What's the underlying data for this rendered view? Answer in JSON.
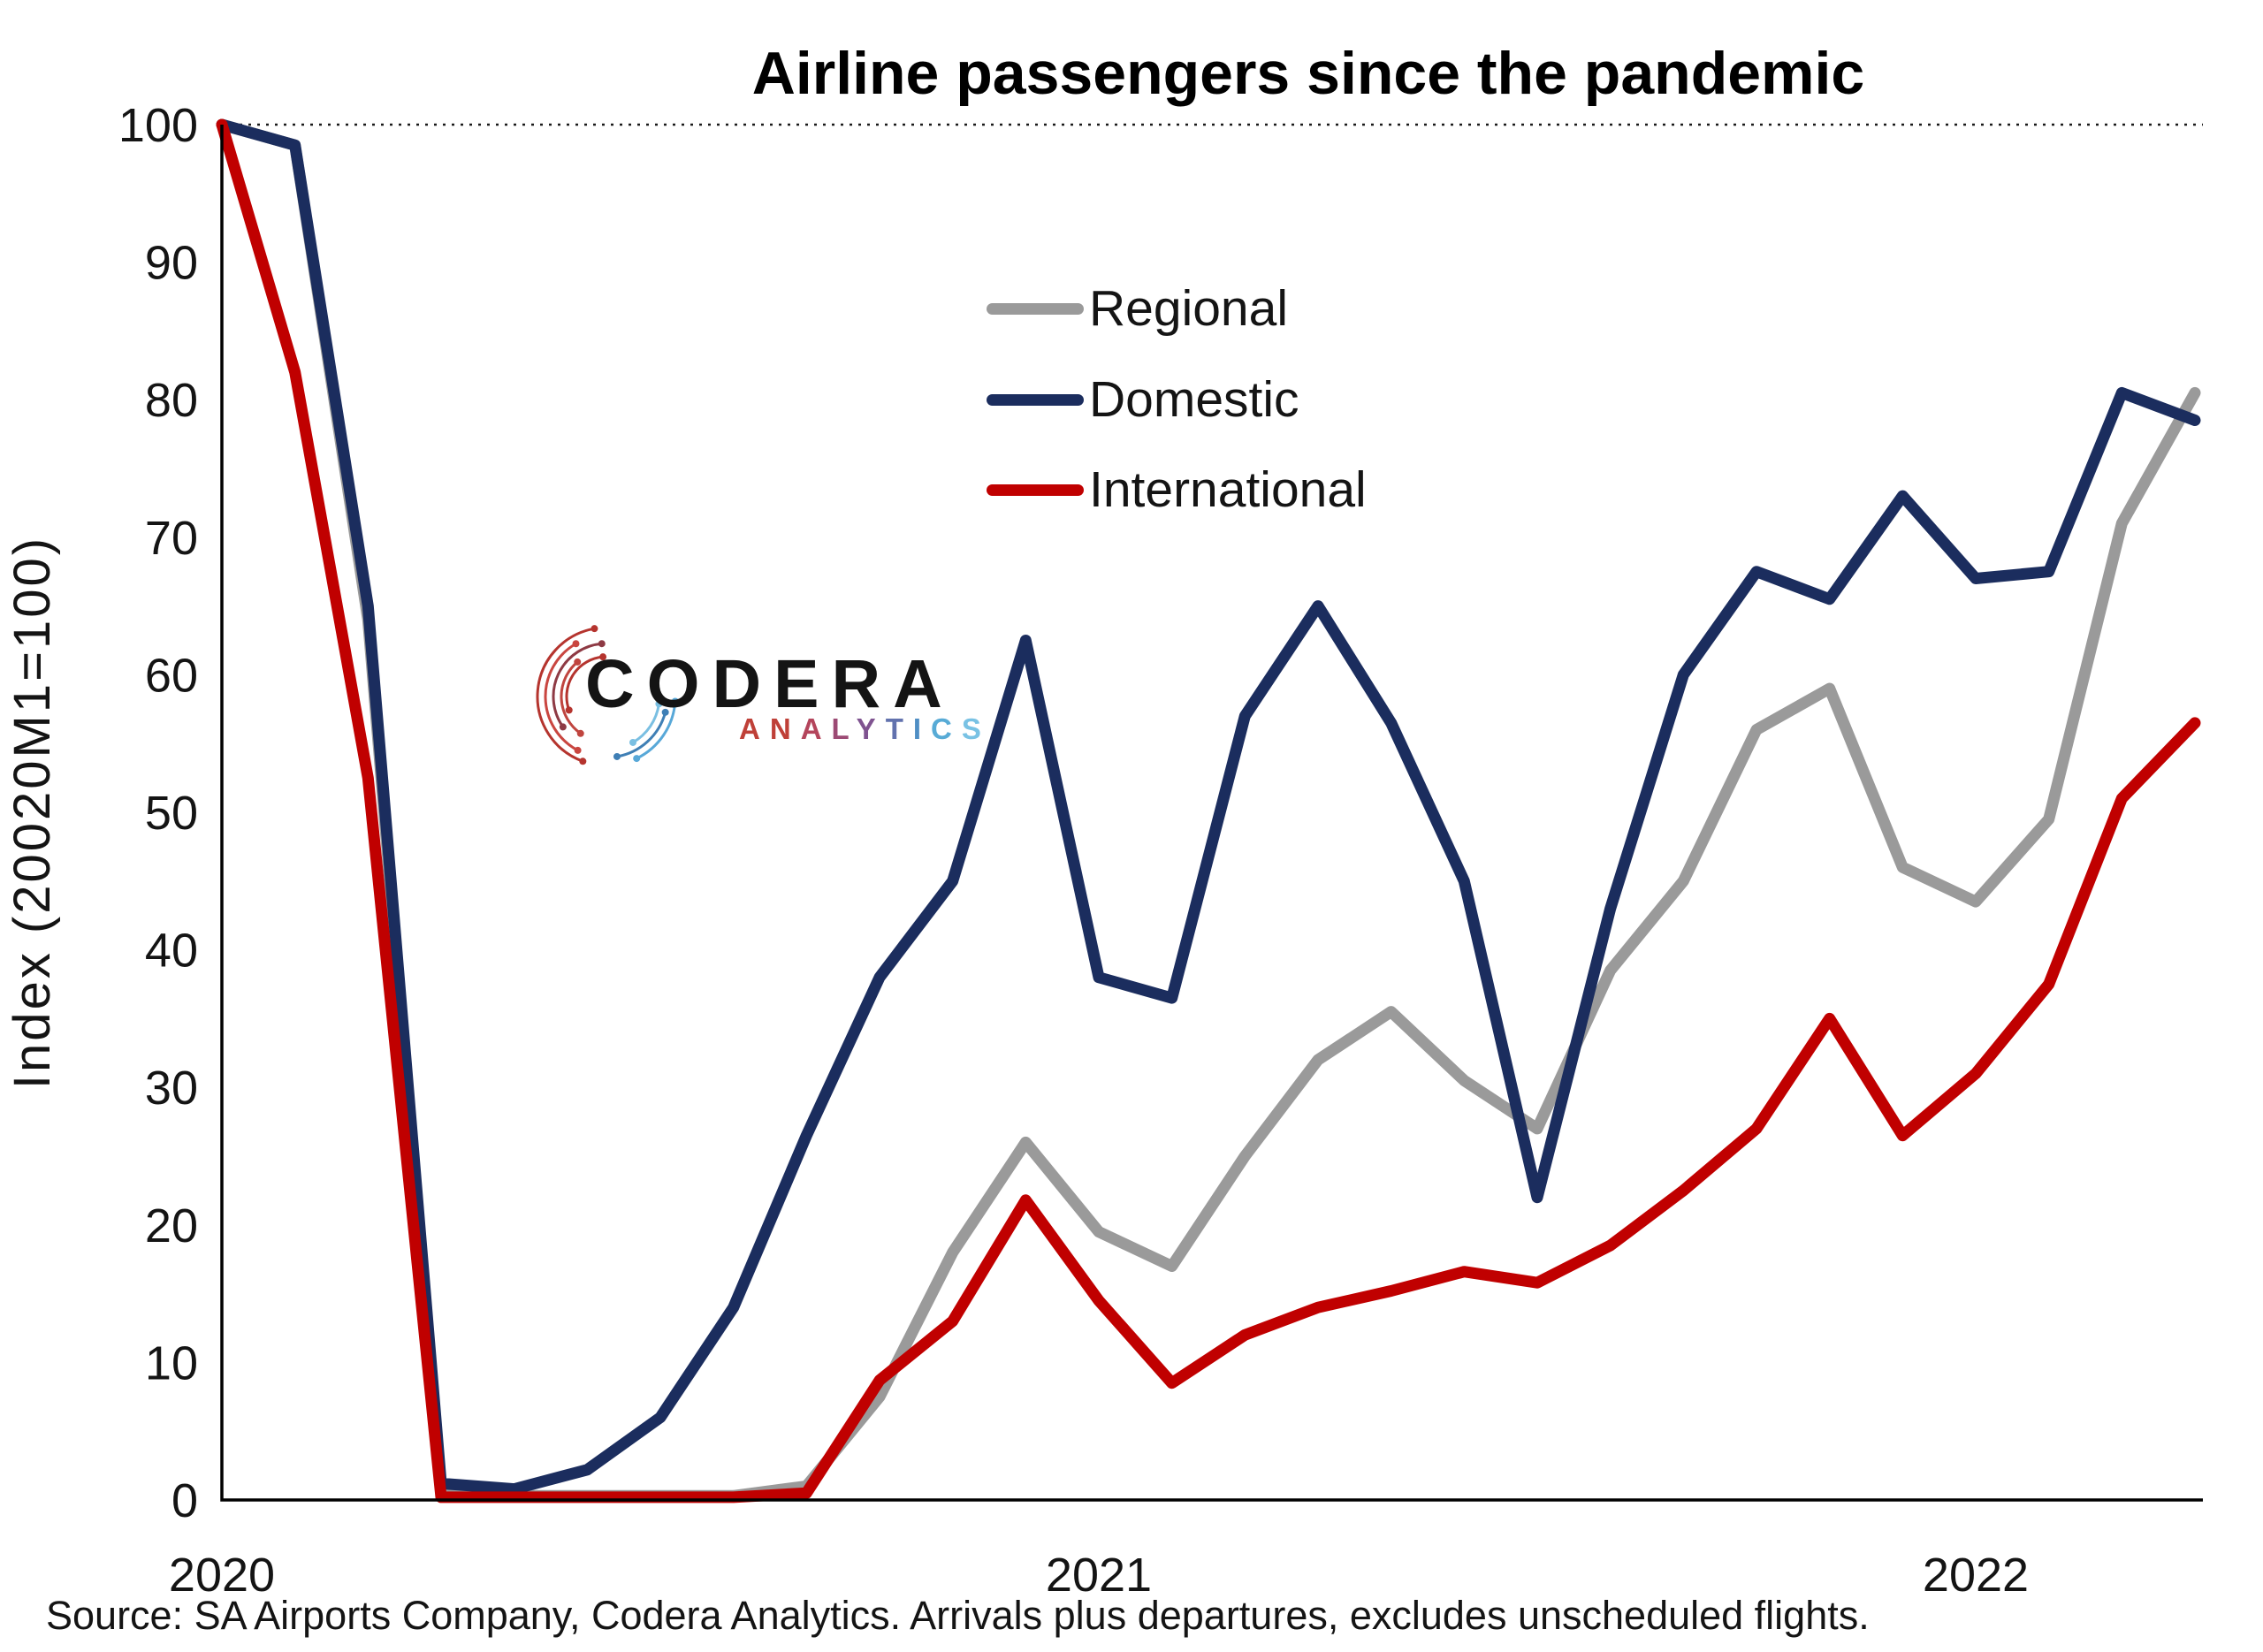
{
  "title": "Airline passengers since the pandemic",
  "y_axis_title": "Index (20020M1=100)",
  "source_note": "Source: SA Airports Company, Codera Analytics. Arrivals plus departures, excludes unscheduled flights.",
  "legend": [
    {
      "label": "Regional",
      "color": "#9a9a9a"
    },
    {
      "label": "Domestic",
      "color": "#1b2d5e"
    },
    {
      "label": "International",
      "color": "#c00000"
    }
  ],
  "logo": {
    "name": "CODERA",
    "subtitle": "ANALYTICS",
    "subtitle_letter_colors": [
      "#bf4038",
      "#bf4038",
      "#b4455c",
      "#9c4a74",
      "#7f5390",
      "#6272ae",
      "#4f8ec4",
      "#58abd6",
      "#79c2e4"
    ],
    "icon_red": "#b5342e",
    "icon_blue": "#58a8d8"
  },
  "chart_data": {
    "type": "line",
    "title": "Airline passengers since the pandemic",
    "xlabel": "",
    "ylabel": "Index (20020M1=100)",
    "ylim": [
      0,
      100
    ],
    "y_ticks": [
      0,
      10,
      20,
      30,
      40,
      50,
      60,
      70,
      80,
      90,
      100
    ],
    "gridline_at": 100,
    "gridline_style": "dotted",
    "legend_position": "upper-center",
    "x": [
      "2020-01",
      "2020-02",
      "2020-03",
      "2020-04",
      "2020-05",
      "2020-06",
      "2020-07",
      "2020-08",
      "2020-09",
      "2020-10",
      "2020-11",
      "2020-12",
      "2021-01",
      "2021-02",
      "2021-03",
      "2021-04",
      "2021-05",
      "2021-06",
      "2021-07",
      "2021-08",
      "2021-09",
      "2021-10",
      "2021-11",
      "2021-12",
      "2022-01",
      "2022-02",
      "2022-03",
      "2022-04"
    ],
    "x_ticks": [
      {
        "label": "2020",
        "index": 0
      },
      {
        "label": "2021",
        "index": 12
      },
      {
        "label": "2022",
        "index": 24
      }
    ],
    "series": [
      {
        "name": "Regional",
        "color": "#9a9a9a",
        "values": [
          100,
          98.5,
          64,
          0.5,
          0.3,
          0.3,
          0.3,
          0.3,
          1,
          7.5,
          18,
          26,
          19.5,
          17,
          25,
          32,
          35.5,
          30.5,
          27,
          38.5,
          45,
          56,
          59,
          46,
          43.5,
          49.5,
          71,
          80.5
        ]
      },
      {
        "name": "Domestic",
        "color": "#1b2d5e",
        "values": [
          100,
          98.5,
          65,
          1.2,
          0.8,
          2.2,
          6,
          14,
          26.5,
          38,
          45,
          62.5,
          38,
          36.5,
          57,
          65,
          56.5,
          45,
          22,
          43,
          60,
          67.5,
          65.5,
          73,
          67,
          67.5,
          80.5,
          78.5
        ]
      },
      {
        "name": "International",
        "color": "#c00000",
        "values": [
          100,
          82,
          52.5,
          0.2,
          0.2,
          0.2,
          0.2,
          0.2,
          0.5,
          8.7,
          13,
          21.8,
          14.5,
          8.5,
          12,
          14,
          15.2,
          16.6,
          15.8,
          18.5,
          22.5,
          27,
          35,
          26.5,
          31,
          37.5,
          51,
          56.5
        ]
      }
    ]
  }
}
